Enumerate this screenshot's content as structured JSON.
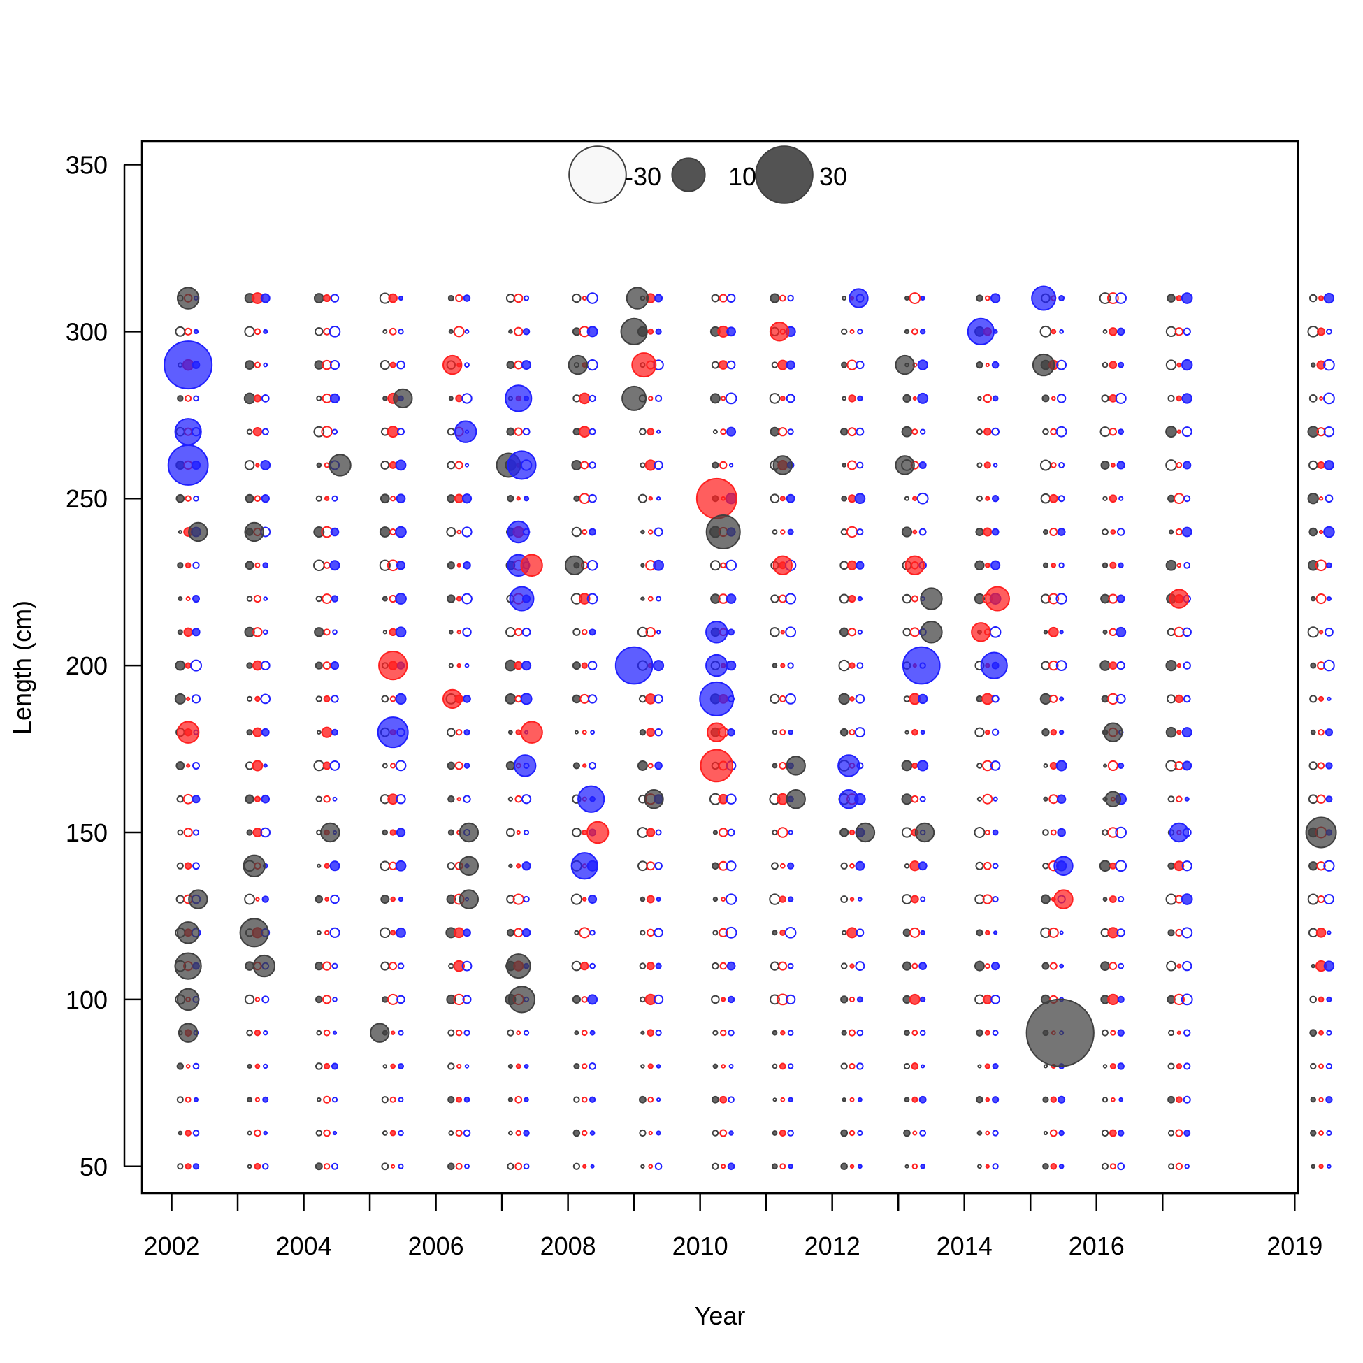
{
  "chart_data": {
    "type": "scatter",
    "subtype": "bubble",
    "xlabel": "Year",
    "ylabel": "Length (cm)",
    "xlim": [
      2001.55,
      2019.05
    ],
    "ylim": [
      42,
      357
    ],
    "xticks": [
      2002,
      2003,
      2004,
      2005,
      2006,
      2007,
      2008,
      2009,
      2010,
      2011,
      2012,
      2013,
      2014,
      2015,
      2016,
      2017,
      2019
    ],
    "xtick_labels": [
      {
        "value": 2002,
        "label": "2002"
      },
      {
        "value": 2004,
        "label": "2004"
      },
      {
        "value": 2006,
        "label": "2006"
      },
      {
        "value": 2008,
        "label": "2008"
      },
      {
        "value": 2010,
        "label": "2010"
      },
      {
        "value": 2012,
        "label": "2012"
      },
      {
        "value": 2014,
        "label": "2014"
      },
      {
        "value": 2016,
        "label": "2016"
      },
      {
        "value": 2019,
        "label": "2019"
      }
    ],
    "yticks": [
      {
        "value": 50,
        "label": "50"
      },
      {
        "value": 100,
        "label": "100"
      },
      {
        "value": 150,
        "label": "150"
      },
      {
        "value": 200,
        "label": "200"
      },
      {
        "value": 250,
        "label": "250"
      },
      {
        "value": 300,
        "label": "300"
      },
      {
        "value": 350,
        "label": "350"
      }
    ],
    "grid": false,
    "legend": {
      "position": "top-center",
      "entries": [
        {
          "label": "-30",
          "value": -30
        },
        {
          "label": "10",
          "value": 10
        },
        {
          "label": "30",
          "value": 30
        }
      ]
    },
    "colors": {
      "positive": "#404040",
      "negative_outline": "#404040",
      "red": "#ff2020",
      "blue": "#2020ff"
    },
    "note_values": "Bubble values are Pearson-residual-like magnitudes; filled = positive, open = negative. Representative large bubbles listed; small bubbles fill remaining grid.",
    "columns": [
      2002.25,
      2003.3,
      2004.35,
      2005.35,
      2006.35,
      2007.25,
      2008.25,
      2009.25,
      2010.35,
      2011.25,
      2012.3,
      2013.25,
      2014.35,
      2015.35,
      2016.25,
      2017.25,
      2019.4
    ],
    "length_bins": [
      50,
      60,
      70,
      80,
      90,
      100,
      110,
      120,
      130,
      140,
      150,
      160,
      170,
      180,
      190,
      200,
      210,
      220,
      230,
      240,
      250,
      260,
      270,
      280,
      290,
      300,
      310
    ],
    "highlights": [
      {
        "x": 2002.25,
        "y": 290,
        "value": 20,
        "series": "blue"
      },
      {
        "x": 2002.25,
        "y": 260,
        "value": 14,
        "series": "blue"
      },
      {
        "x": 2002.25,
        "y": 270,
        "value": 6,
        "series": "blue"
      },
      {
        "x": 2002.25,
        "y": 310,
        "value": 4,
        "series": "black"
      },
      {
        "x": 2002.25,
        "y": 180,
        "value": 4,
        "series": "red"
      },
      {
        "x": 2002.25,
        "y": 120,
        "value": 4,
        "series": "black"
      },
      {
        "x": 2002.25,
        "y": 110,
        "value": 6,
        "series": "black"
      },
      {
        "x": 2002.25,
        "y": 100,
        "value": 4,
        "series": "black"
      },
      {
        "x": 2002.25,
        "y": 90,
        "value": 3,
        "series": "black"
      },
      {
        "x": 2002.4,
        "y": 240,
        "value": 3,
        "series": "black"
      },
      {
        "x": 2002.4,
        "y": 130,
        "value": 3,
        "series": "black"
      },
      {
        "x": 2003.25,
        "y": 140,
        "value": 4,
        "series": "black"
      },
      {
        "x": 2003.25,
        "y": 120,
        "value": 7,
        "series": "black"
      },
      {
        "x": 2003.4,
        "y": 110,
        "value": 4,
        "series": "black"
      },
      {
        "x": 2003.25,
        "y": 240,
        "value": 3,
        "series": "black"
      },
      {
        "x": 2004.55,
        "y": 260,
        "value": 4,
        "series": "black"
      },
      {
        "x": 2004.4,
        "y": 150,
        "value": 3,
        "series": "black"
      },
      {
        "x": 2005.35,
        "y": 200,
        "value": 7,
        "series": "red"
      },
      {
        "x": 2005.35,
        "y": 180,
        "value": 8,
        "series": "blue"
      },
      {
        "x": 2005.15,
        "y": 90,
        "value": 3,
        "series": "black"
      },
      {
        "x": 2005.5,
        "y": 280,
        "value": 3,
        "series": "black"
      },
      {
        "x": 2006.25,
        "y": 290,
        "value": 3,
        "series": "red"
      },
      {
        "x": 2006.25,
        "y": 190,
        "value": 3,
        "series": "red"
      },
      {
        "x": 2006.45,
        "y": 270,
        "value": 4,
        "series": "blue"
      },
      {
        "x": 2006.5,
        "y": 150,
        "value": 3,
        "series": "black"
      },
      {
        "x": 2006.5,
        "y": 140,
        "value": 3,
        "series": "black"
      },
      {
        "x": 2006.5,
        "y": 130,
        "value": 3,
        "series": "black"
      },
      {
        "x": 2007.1,
        "y": 260,
        "value": 5,
        "series": "black"
      },
      {
        "x": 2007.3,
        "y": 260,
        "value": 7,
        "series": "blue"
      },
      {
        "x": 2007.25,
        "y": 280,
        "value": 6,
        "series": "blue"
      },
      {
        "x": 2007.25,
        "y": 240,
        "value": 4,
        "series": "blue"
      },
      {
        "x": 2007.3,
        "y": 220,
        "value": 5,
        "series": "blue"
      },
      {
        "x": 2007.25,
        "y": 230,
        "value": 4,
        "series": "blue"
      },
      {
        "x": 2007.45,
        "y": 230,
        "value": 4,
        "series": "red"
      },
      {
        "x": 2007.45,
        "y": 180,
        "value": 4,
        "series": "red"
      },
      {
        "x": 2007.35,
        "y": 170,
        "value": 4,
        "series": "blue"
      },
      {
        "x": 2007.25,
        "y": 110,
        "value": 5,
        "series": "black"
      },
      {
        "x": 2007.3,
        "y": 100,
        "value": 6,
        "series": "black"
      },
      {
        "x": 2008.25,
        "y": 140,
        "value": 6,
        "series": "blue"
      },
      {
        "x": 2008.35,
        "y": 160,
        "value": 6,
        "series": "blue"
      },
      {
        "x": 2008.45,
        "y": 150,
        "value": 4,
        "series": "red"
      },
      {
        "x": 2008.1,
        "y": 230,
        "value": 3,
        "series": "black"
      },
      {
        "x": 2008.15,
        "y": 290,
        "value": 3,
        "series": "black"
      },
      {
        "x": 2009.05,
        "y": 310,
        "value": 4,
        "series": "black"
      },
      {
        "x": 2009.0,
        "y": 300,
        "value": 6,
        "series": "black"
      },
      {
        "x": 2009.0,
        "y": 280,
        "value": 5,
        "series": "black"
      },
      {
        "x": 2009.15,
        "y": 290,
        "value": 5,
        "series": "red"
      },
      {
        "x": 2009.0,
        "y": 200,
        "value": 12,
        "series": "blue"
      },
      {
        "x": 2009.3,
        "y": 160,
        "value": 3,
        "series": "black"
      },
      {
        "x": 2010.25,
        "y": 250,
        "value": 14,
        "series": "red"
      },
      {
        "x": 2010.35,
        "y": 240,
        "value": 10,
        "series": "black"
      },
      {
        "x": 2010.25,
        "y": 190,
        "value": 10,
        "series": "blue"
      },
      {
        "x": 2010.25,
        "y": 200,
        "value": 4,
        "series": "blue"
      },
      {
        "x": 2010.25,
        "y": 210,
        "value": 4,
        "series": "blue"
      },
      {
        "x": 2010.25,
        "y": 170,
        "value": 9,
        "series": "red"
      },
      {
        "x": 2010.25,
        "y": 180,
        "value": 3,
        "series": "red"
      },
      {
        "x": 2011.2,
        "y": 300,
        "value": 3,
        "series": "red"
      },
      {
        "x": 2011.25,
        "y": 260,
        "value": 3,
        "series": "black"
      },
      {
        "x": 2011.25,
        "y": 230,
        "value": 3,
        "series": "red"
      },
      {
        "x": 2011.45,
        "y": 170,
        "value": 3,
        "series": "black"
      },
      {
        "x": 2011.45,
        "y": 160,
        "value": 3,
        "series": "black"
      },
      {
        "x": 2012.4,
        "y": 310,
        "value": 3,
        "series": "blue"
      },
      {
        "x": 2012.25,
        "y": 170,
        "value": 4,
        "series": "blue"
      },
      {
        "x": 2012.25,
        "y": 160,
        "value": 3,
        "series": "blue"
      },
      {
        "x": 2012.5,
        "y": 150,
        "value": 3,
        "series": "black"
      },
      {
        "x": 2013.35,
        "y": 200,
        "value": 12,
        "series": "blue"
      },
      {
        "x": 2013.5,
        "y": 210,
        "value": 4,
        "series": "black"
      },
      {
        "x": 2013.5,
        "y": 220,
        "value": 4,
        "series": "black"
      },
      {
        "x": 2013.25,
        "y": 230,
        "value": 3,
        "series": "red"
      },
      {
        "x": 2013.1,
        "y": 290,
        "value": 3,
        "series": "black"
      },
      {
        "x": 2013.1,
        "y": 260,
        "value": 3,
        "series": "black"
      },
      {
        "x": 2013.4,
        "y": 150,
        "value": 3,
        "series": "black"
      },
      {
        "x": 2014.25,
        "y": 300,
        "value": 6,
        "series": "blue"
      },
      {
        "x": 2014.5,
        "y": 220,
        "value": 5,
        "series": "red"
      },
      {
        "x": 2014.45,
        "y": 200,
        "value": 6,
        "series": "blue"
      },
      {
        "x": 2014.25,
        "y": 210,
        "value": 3,
        "series": "red"
      },
      {
        "x": 2015.2,
        "y": 310,
        "value": 5,
        "series": "blue"
      },
      {
        "x": 2015.2,
        "y": 290,
        "value": 4,
        "series": "black"
      },
      {
        "x": 2015.45,
        "y": 90,
        "value": 40,
        "series": "black"
      },
      {
        "x": 2015.5,
        "y": 130,
        "value": 3,
        "series": "red"
      },
      {
        "x": 2015.5,
        "y": 140,
        "value": 3,
        "series": "blue"
      },
      {
        "x": 2016.25,
        "y": 180,
        "value": 3,
        "series": "black"
      },
      {
        "x": 2016.25,
        "y": 160,
        "value": 2,
        "series": "black"
      },
      {
        "x": 2017.25,
        "y": 220,
        "value": 3,
        "series": "red"
      },
      {
        "x": 2017.25,
        "y": 150,
        "value": 3,
        "series": "blue"
      },
      {
        "x": 2019.4,
        "y": 150,
        "value": 8,
        "series": "black"
      }
    ]
  }
}
